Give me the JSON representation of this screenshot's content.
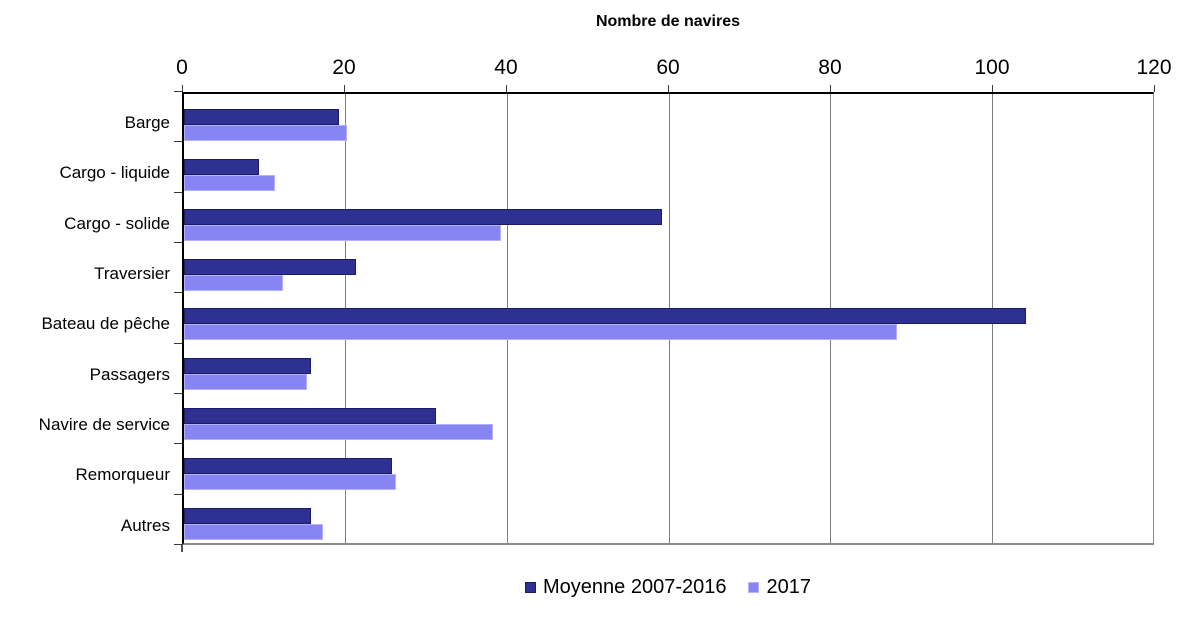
{
  "chart_data": {
    "type": "bar",
    "orientation": "horizontal",
    "title": "Nombre de navires",
    "categories": [
      "Barge",
      "Cargo - liquide",
      "Cargo - solide",
      "Traversier",
      "Bateau de pêche",
      "Passagers",
      "Navire de service",
      "Remorqueur",
      "Autres"
    ],
    "series": [
      {
        "name": "Moyenne 2007-2016",
        "color": "#2E3191",
        "border_color": "#1C1B66",
        "values": [
          19,
          9,
          59,
          21,
          104,
          15.5,
          31,
          25.5,
          15.5
        ]
      },
      {
        "name": "2017",
        "color": "#8784F4",
        "border_color": "#B3B1FB",
        "values": [
          20,
          11,
          39,
          12,
          88,
          15,
          38,
          26,
          17
        ]
      }
    ],
    "x_ticks": [
      0,
      20,
      40,
      60,
      80,
      100,
      120
    ],
    "xlim": [
      0,
      120
    ],
    "grid": true,
    "gridline_color": "#808080",
    "legend_position": "bottom"
  }
}
